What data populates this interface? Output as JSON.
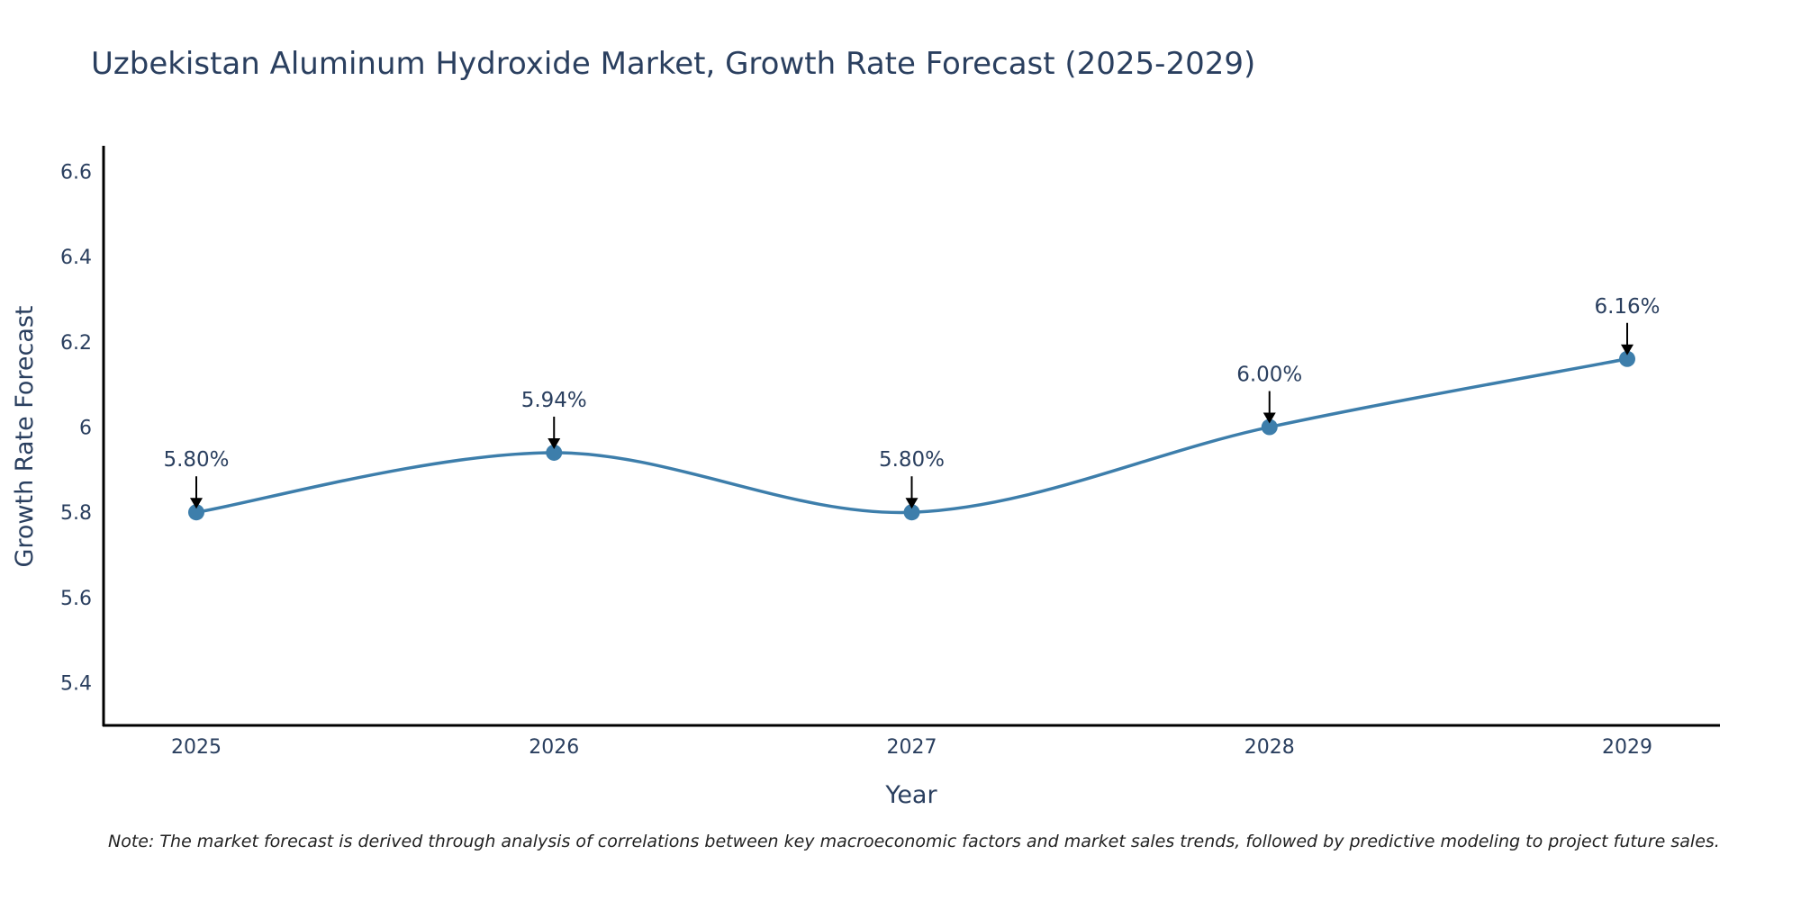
{
  "chart_data": {
    "type": "line",
    "title": "Uzbekistan Aluminum Hydroxide Market, Growth Rate Forecast (2025-2029)",
    "xlabel": "Year",
    "ylabel": "Growth Rate Forecast",
    "categories": [
      "2025",
      "2026",
      "2027",
      "2028",
      "2029"
    ],
    "series": [
      {
        "name": "Growth Rate Forecast",
        "values": [
          5.8,
          5.94,
          5.8,
          6.0,
          6.16
        ],
        "labels": [
          "5.80%",
          "5.94%",
          "5.80%",
          "6.00%",
          "6.16%"
        ],
        "color": "#3d7eab"
      }
    ],
    "ylim": [
      5.3,
      6.66
    ],
    "yticks": [
      5.4,
      5.6,
      5.8,
      6,
      6.2,
      6.4,
      6.6
    ],
    "ytick_labels": [
      "5.4",
      "5.6",
      "5.8",
      "6",
      "6.2",
      "6.4",
      "6.6"
    ],
    "grid": false,
    "line_shape": "spline",
    "annotations": "arrow above each point with percent label"
  },
  "note": "Note: The market forecast is derived through analysis of correlations between key macroeconomic factors and market sales trends, followed by predictive modeling to project future sales."
}
